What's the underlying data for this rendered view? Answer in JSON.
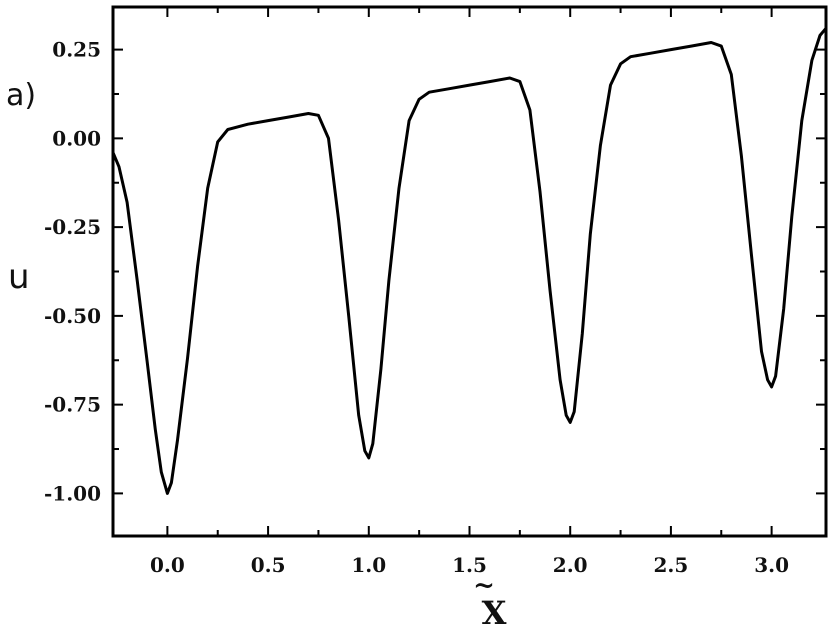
{
  "chart_data": {
    "type": "line",
    "panel_label": "a)",
    "xlabel": "X",
    "xlabel_accent": "~",
    "ylabel": "u",
    "xlim": [
      -0.27,
      3.27
    ],
    "ylim": [
      -1.12,
      0.37
    ],
    "grid": false,
    "x_ticks": [
      {
        "value": 0.0,
        "label": "0.0"
      },
      {
        "value": 0.5,
        "label": "0.5"
      },
      {
        "value": 1.0,
        "label": "1.0"
      },
      {
        "value": 1.5,
        "label": "1.5"
      },
      {
        "value": 2.0,
        "label": "2.0"
      },
      {
        "value": 2.5,
        "label": "2.5"
      },
      {
        "value": 3.0,
        "label": "3.0"
      }
    ],
    "y_ticks": [
      {
        "value": 0.25,
        "label": "0.25"
      },
      {
        "value": 0.0,
        "label": "0.00"
      },
      {
        "value": -0.25,
        "label": "-0.25"
      },
      {
        "value": -0.5,
        "label": "-0.50"
      },
      {
        "value": -0.75,
        "label": "-0.75"
      },
      {
        "value": -1.0,
        "label": "-1.00"
      }
    ],
    "series": [
      {
        "color": "#000000",
        "points": [
          [
            -0.27,
            -0.04
          ],
          [
            -0.24,
            -0.08
          ],
          [
            -0.2,
            -0.18
          ],
          [
            -0.15,
            -0.4
          ],
          [
            -0.1,
            -0.63
          ],
          [
            -0.06,
            -0.82
          ],
          [
            -0.03,
            -0.94
          ],
          [
            0.0,
            -1.0
          ],
          [
            0.02,
            -0.97
          ],
          [
            0.05,
            -0.85
          ],
          [
            0.1,
            -0.62
          ],
          [
            0.15,
            -0.36
          ],
          [
            0.2,
            -0.14
          ],
          [
            0.25,
            -0.01
          ],
          [
            0.3,
            0.025
          ],
          [
            0.4,
            0.04
          ],
          [
            0.5,
            0.05
          ],
          [
            0.6,
            0.06
          ],
          [
            0.7,
            0.07
          ],
          [
            0.75,
            0.065
          ],
          [
            0.8,
            0.0
          ],
          [
            0.85,
            -0.23
          ],
          [
            0.9,
            -0.5
          ],
          [
            0.95,
            -0.78
          ],
          [
            0.98,
            -0.88
          ],
          [
            1.0,
            -0.9
          ],
          [
            1.02,
            -0.86
          ],
          [
            1.06,
            -0.65
          ],
          [
            1.1,
            -0.4
          ],
          [
            1.15,
            -0.14
          ],
          [
            1.2,
            0.05
          ],
          [
            1.25,
            0.11
          ],
          [
            1.3,
            0.13
          ],
          [
            1.4,
            0.14
          ],
          [
            1.5,
            0.15
          ],
          [
            1.6,
            0.16
          ],
          [
            1.7,
            0.17
          ],
          [
            1.75,
            0.16
          ],
          [
            1.8,
            0.08
          ],
          [
            1.85,
            -0.15
          ],
          [
            1.9,
            -0.43
          ],
          [
            1.95,
            -0.68
          ],
          [
            1.98,
            -0.78
          ],
          [
            2.0,
            -0.8
          ],
          [
            2.02,
            -0.77
          ],
          [
            2.06,
            -0.55
          ],
          [
            2.1,
            -0.27
          ],
          [
            2.15,
            -0.02
          ],
          [
            2.2,
            0.15
          ],
          [
            2.25,
            0.21
          ],
          [
            2.3,
            0.23
          ],
          [
            2.4,
            0.24
          ],
          [
            2.5,
            0.25
          ],
          [
            2.6,
            0.26
          ],
          [
            2.7,
            0.27
          ],
          [
            2.75,
            0.26
          ],
          [
            2.8,
            0.18
          ],
          [
            2.85,
            -0.05
          ],
          [
            2.9,
            -0.33
          ],
          [
            2.95,
            -0.6
          ],
          [
            2.98,
            -0.68
          ],
          [
            3.0,
            -0.7
          ],
          [
            3.02,
            -0.67
          ],
          [
            3.06,
            -0.48
          ],
          [
            3.1,
            -0.22
          ],
          [
            3.15,
            0.05
          ],
          [
            3.2,
            0.22
          ],
          [
            3.24,
            0.29
          ],
          [
            3.27,
            0.31
          ]
        ]
      }
    ]
  }
}
